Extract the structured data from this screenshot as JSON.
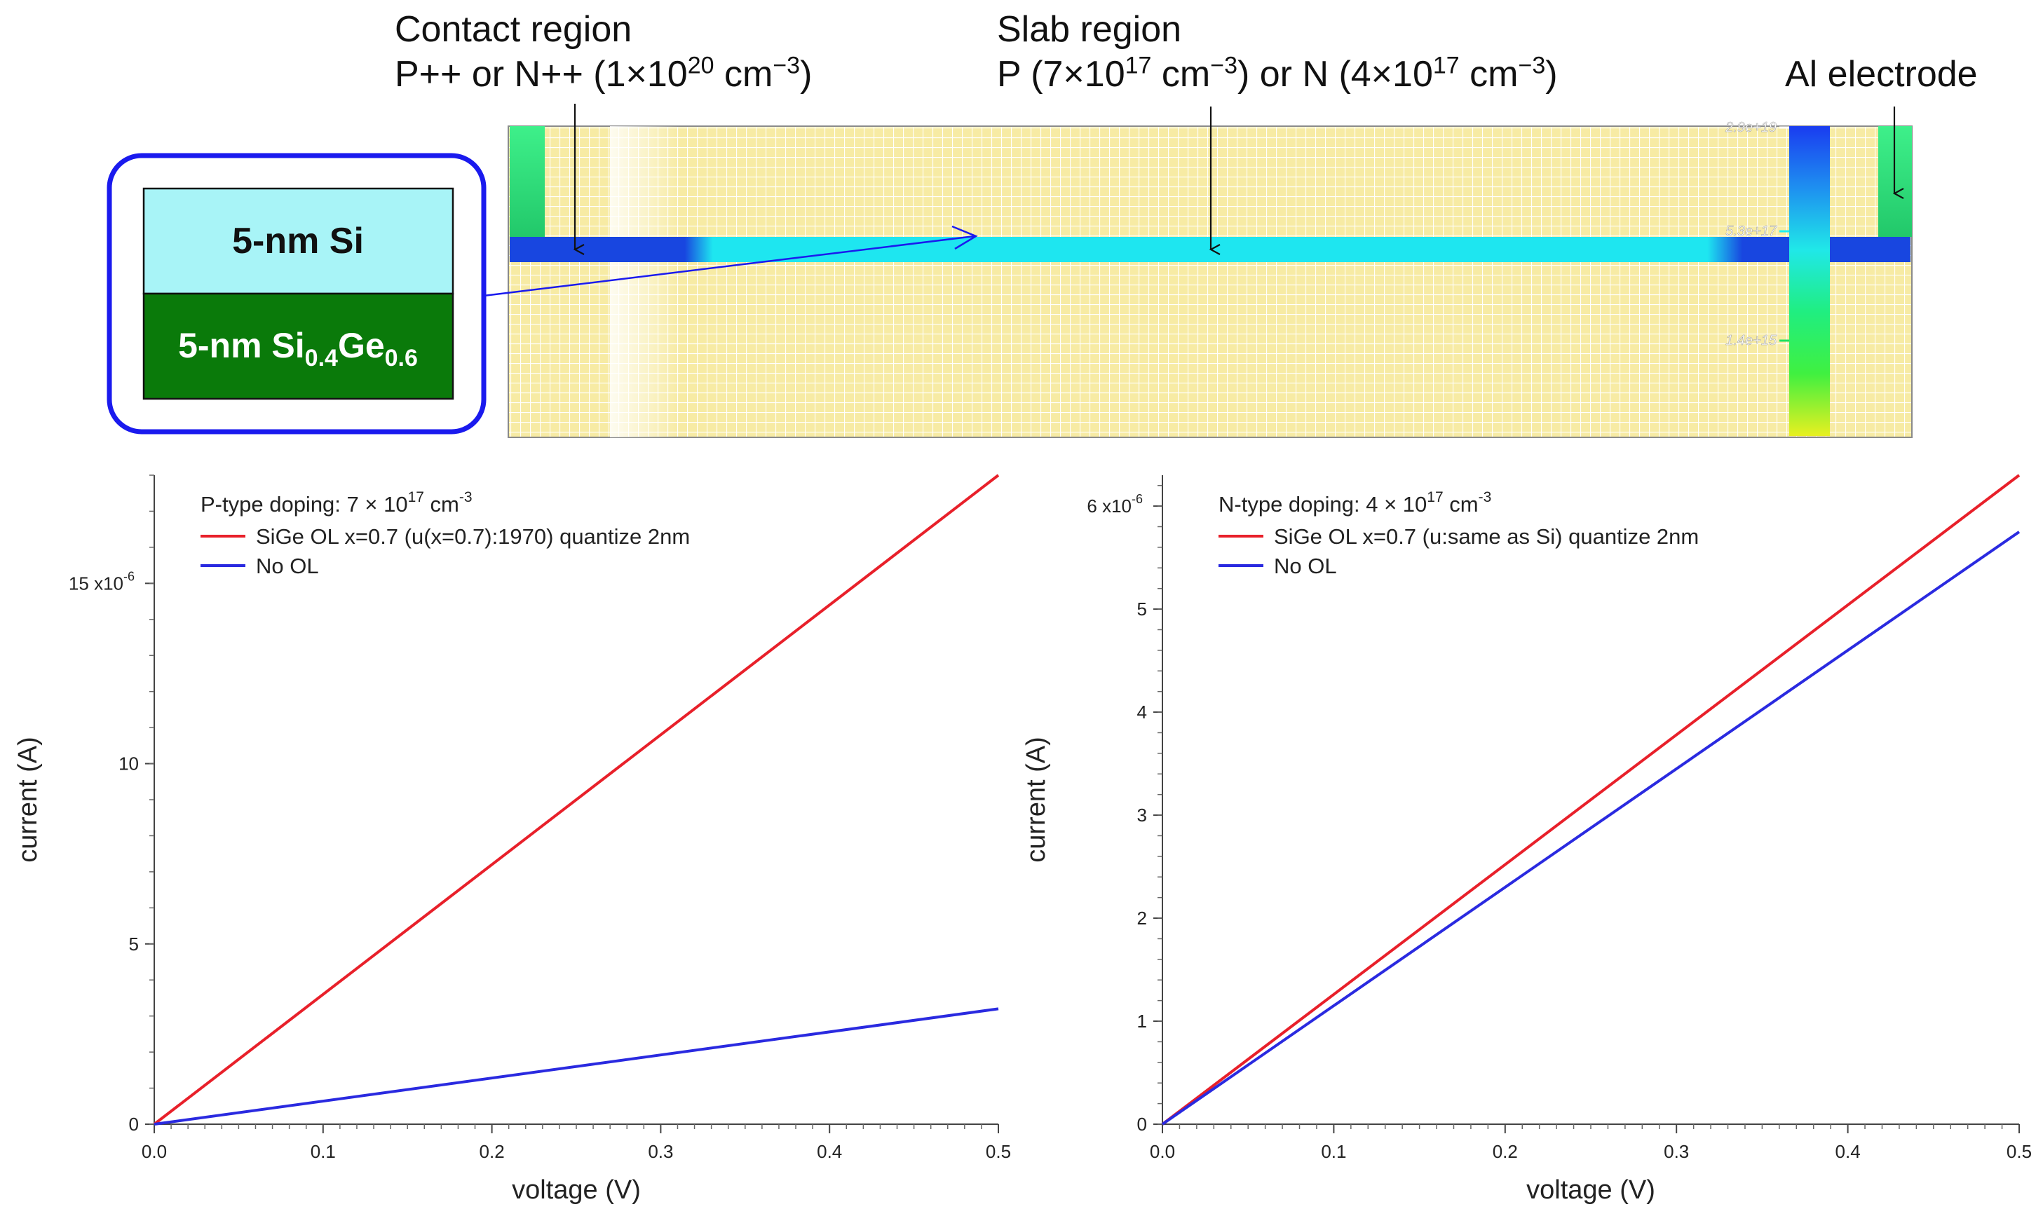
{
  "labels": {
    "contact_title": "Contact region",
    "contact_desc_a": "P++ or N++ (1×10",
    "contact_desc_exp": "20",
    "contact_desc_b": " cm",
    "contact_desc_exp2": "−3",
    "contact_desc_c": ")",
    "slab_title": "Slab region",
    "slab_a": "P (7×10",
    "slab_exp1": "17",
    "slab_b": " cm",
    "slab_exp2": "−3",
    "slab_c": ") or N (4×10",
    "slab_exp3": "17",
    "slab_d": " cm",
    "slab_exp4": "−3",
    "slab_e": ")",
    "electrode": "Al electrode"
  },
  "inset": {
    "si_layer": "5-nm Si",
    "sige_prefix": "5-nm Si",
    "sige_sub1": "0.4",
    "sige_mid": "Ge",
    "sige_sub2": "0.6"
  },
  "colorbar": {
    "tick_top": "2.9e+19",
    "tick_mid": "5.3e+17",
    "tick_low": "1.4e+15"
  },
  "colors": {
    "red": "#e8202a",
    "blue": "#2a2ae0",
    "mesh_bg": "#f7eba4",
    "contact": "#1846e0",
    "slab": "#1ee6f0",
    "electrode": "#33e07a",
    "inset_border": "#1a1aee",
    "si_fill": "#a8f4f7",
    "sige_fill": "#0a7a0a"
  },
  "chart_data": [
    {
      "type": "line",
      "title": "P-type doping: 7 × 10^17 cm^-3",
      "legend_title_prefix": "P-type doping: 7 × 10",
      "legend_title_exp": "17",
      "legend_title_unit": " cm",
      "legend_title_unit_exp": "-3",
      "xlabel": "voltage (V)",
      "ylabel": "current (A)",
      "xlim": [
        0,
        0.5
      ],
      "ylim": [
        0,
        18
      ],
      "x_ticks": [
        0.0,
        0.1,
        0.2,
        0.3,
        0.4,
        0.5
      ],
      "x_tick_labels": [
        "0.0",
        "0.1",
        "0.2",
        "0.3",
        "0.4",
        "0.5"
      ],
      "y_ticks": [
        0,
        5,
        10,
        15
      ],
      "y_tick_labels": [
        "0",
        "5",
        "10",
        "15 x10"
      ],
      "y_exponent": "-6",
      "series": [
        {
          "name": "SiGe OL x=0.7 (u(x=0.7):1970) quantize 2nm",
          "color": "red",
          "x": [
            0,
            0.5
          ],
          "y": [
            0,
            18.0
          ]
        },
        {
          "name": "No OL",
          "color": "blue",
          "x": [
            0,
            0.5
          ],
          "y": [
            0,
            3.2
          ]
        }
      ]
    },
    {
      "type": "line",
      "title": "N-type doping: 4 × 10^17 cm^-3",
      "legend_title_prefix": "N-type doping: 4 × 10",
      "legend_title_exp": "17",
      "legend_title_unit": " cm",
      "legend_title_unit_exp": "-3",
      "xlabel": "voltage (V)",
      "ylabel": "current (A)",
      "xlim": [
        0,
        0.5
      ],
      "ylim": [
        0,
        6.3
      ],
      "x_ticks": [
        0.0,
        0.1,
        0.2,
        0.3,
        0.4,
        0.5
      ],
      "x_tick_labels": [
        "0.0",
        "0.1",
        "0.2",
        "0.3",
        "0.4",
        "0.5"
      ],
      "y_ticks": [
        0,
        1,
        2,
        3,
        4,
        5,
        6
      ],
      "y_tick_labels": [
        "0",
        "1",
        "2",
        "3",
        "4",
        "5",
        "6 x10"
      ],
      "y_exponent": "-6",
      "series": [
        {
          "name": "SiGe OL x=0.7 (u:same as Si) quantize 2nm",
          "color": "red",
          "x": [
            0,
            0.5
          ],
          "y": [
            0,
            6.3
          ]
        },
        {
          "name": "No OL",
          "color": "blue",
          "x": [
            0,
            0.5
          ],
          "y": [
            0,
            5.75
          ]
        }
      ]
    }
  ]
}
